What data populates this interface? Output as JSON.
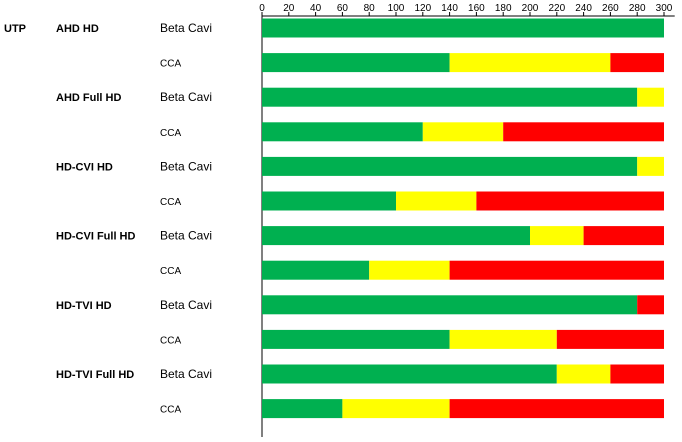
{
  "chart_data": {
    "type": "bar",
    "orientation": "horizontal",
    "stacked": true,
    "title": "",
    "xlabel": "",
    "ylabel": "",
    "xlim": [
      0,
      305
    ],
    "x_ticks": [
      0,
      20,
      40,
      60,
      80,
      100,
      120,
      140,
      160,
      180,
      200,
      220,
      240,
      260,
      280,
      300
    ],
    "x_axis_position": "top",
    "grid": false,
    "legend": "none",
    "cable_label": "UTP",
    "groups": [
      {
        "label": "AHD HD",
        "row_start": 0
      },
      {
        "label": "AHD Full HD",
        "row_start": 2
      },
      {
        "label": "HD-CVI HD",
        "row_start": 4
      },
      {
        "label": "HD-CVI Full HD",
        "row_start": 6
      },
      {
        "label": "HD-TVI HD",
        "row_start": 8
      },
      {
        "label": "HD-TVI Full HD",
        "row_start": 10
      }
    ],
    "categories": [
      "Beta Cavi",
      "CCA",
      "Beta Cavi",
      "CCA",
      "Beta Cavi",
      "CCA",
      "Beta Cavi",
      "CCA",
      "Beta Cavi",
      "CCA",
      "Beta Cavi",
      "CCA"
    ],
    "series": [
      {
        "color": "#00b050",
        "values": [
          300,
          140,
          280,
          120,
          280,
          100,
          200,
          80,
          280,
          140,
          220,
          60
        ]
      },
      {
        "color": "#ffff00",
        "values": [
          0,
          120,
          20,
          60,
          20,
          60,
          40,
          60,
          0,
          80,
          40,
          80
        ]
      },
      {
        "color": "#ff0000",
        "values": [
          0,
          40,
          0,
          120,
          0,
          140,
          60,
          160,
          20,
          80,
          40,
          160
        ]
      }
    ]
  }
}
